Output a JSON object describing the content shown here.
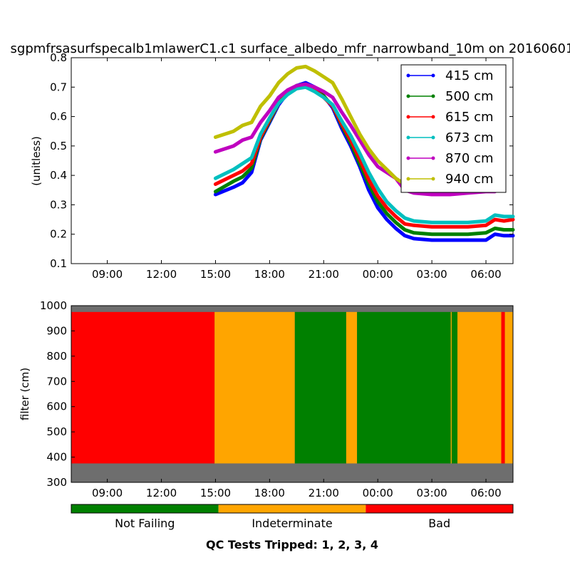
{
  "title": "sgpmfrsasurfspecalb1mlawerC1.c1 surface_albedo_mfr_narrowband_10m on 20160601",
  "colors": {
    "blue": "#0000ff",
    "green": "#008000",
    "red": "#ff0000",
    "cyan": "#00bfbf",
    "magenta": "#bf00bf",
    "olive": "#bfbf00",
    "orange": "#ffa500",
    "gray": "#6e6e6e"
  },
  "chart_data": [
    {
      "type": "line",
      "ylabel": "(unitless)",
      "xlabel": "",
      "x_unit": "hours since 00:00 on day 1",
      "xlim": [
        7.0,
        31.5
      ],
      "ylim": [
        0.1,
        0.8
      ],
      "yticks": [
        "0.1",
        "0.2",
        "0.3",
        "0.4",
        "0.5",
        "0.6",
        "0.7",
        "0.8"
      ],
      "xticks": [
        "09:00",
        "12:00",
        "15:00",
        "18:00",
        "21:00",
        "00:00",
        "03:00",
        "06:00"
      ],
      "legend_position": "top-right",
      "x": [
        15.0,
        16.0,
        16.5,
        17.0,
        17.5,
        18.0,
        18.5,
        19.0,
        19.5,
        20.0,
        20.5,
        21.0,
        21.5,
        22.0,
        22.5,
        23.0,
        23.5,
        24.0,
        24.5,
        25.0,
        25.5,
        26.0,
        27.0,
        28.0,
        29.0,
        30.0,
        30.5,
        31.0,
        31.5
      ],
      "series": [
        {
          "name": "415 cm",
          "color_key": "blue",
          "values": [
            0.335,
            0.36,
            0.375,
            0.41,
            0.52,
            0.58,
            0.64,
            0.68,
            0.705,
            0.715,
            0.7,
            0.67,
            0.63,
            0.56,
            0.5,
            0.43,
            0.35,
            0.29,
            0.25,
            0.22,
            0.195,
            0.185,
            0.18,
            0.18,
            0.18,
            0.18,
            0.2,
            0.195,
            0.195
          ]
        },
        {
          "name": "500 cm",
          "color_key": "green",
          "values": [
            0.345,
            0.38,
            0.395,
            0.425,
            0.525,
            0.585,
            0.645,
            0.685,
            0.705,
            0.71,
            0.695,
            0.67,
            0.635,
            0.57,
            0.51,
            0.44,
            0.37,
            0.31,
            0.27,
            0.24,
            0.215,
            0.205,
            0.2,
            0.2,
            0.2,
            0.205,
            0.22,
            0.215,
            0.215
          ]
        },
        {
          "name": "615 cm",
          "color_key": "red",
          "values": [
            0.37,
            0.4,
            0.415,
            0.44,
            0.53,
            0.59,
            0.645,
            0.68,
            0.7,
            0.705,
            0.69,
            0.665,
            0.635,
            0.575,
            0.52,
            0.455,
            0.385,
            0.33,
            0.29,
            0.26,
            0.235,
            0.23,
            0.225,
            0.225,
            0.225,
            0.23,
            0.25,
            0.245,
            0.25
          ]
        },
        {
          "name": "673 cm",
          "color_key": "cyan",
          "values": [
            0.39,
            0.42,
            0.44,
            0.46,
            0.54,
            0.595,
            0.645,
            0.675,
            0.695,
            0.7,
            0.685,
            0.665,
            0.64,
            0.585,
            0.535,
            0.475,
            0.41,
            0.355,
            0.31,
            0.28,
            0.255,
            0.245,
            0.24,
            0.24,
            0.24,
            0.245,
            0.265,
            0.26,
            0.26
          ]
        },
        {
          "name": "870 cm",
          "color_key": "magenta",
          "values": [
            0.48,
            0.5,
            0.52,
            0.53,
            0.58,
            0.62,
            0.665,
            0.69,
            0.705,
            0.71,
            0.7,
            0.685,
            0.665,
            0.615,
            0.57,
            0.52,
            0.47,
            0.43,
            0.41,
            0.39,
            0.35,
            0.34,
            0.335,
            0.335,
            0.34,
            0.345,
            0.345,
            null,
            null
          ]
        },
        {
          "name": "940 cm",
          "color_key": "olive",
          "values": [
            0.53,
            0.55,
            0.57,
            0.58,
            0.635,
            0.67,
            0.715,
            0.745,
            0.765,
            0.77,
            0.755,
            0.735,
            0.715,
            0.66,
            0.6,
            0.54,
            0.49,
            0.45,
            0.42,
            0.39,
            0.37,
            0.355,
            0.35,
            0.35,
            0.35,
            0.355,
            null,
            null,
            null
          ]
        }
      ]
    },
    {
      "type": "heatmap",
      "ylabel": "filter (cm)",
      "xlim": [
        7.0,
        31.5
      ],
      "ylim": [
        300,
        1000
      ],
      "filter_range": [
        375,
        975
      ],
      "yticks": [
        "300",
        "400",
        "500",
        "600",
        "700",
        "800",
        "900",
        "1000"
      ],
      "xticks": [
        "09:00",
        "12:00",
        "15:00",
        "18:00",
        "21:00",
        "00:00",
        "03:00",
        "06:00"
      ],
      "segments": [
        {
          "start": 7.0,
          "end": 14.95,
          "state": "red"
        },
        {
          "start": 14.95,
          "end": 19.4,
          "state": "orange"
        },
        {
          "start": 19.4,
          "end": 22.25,
          "state": "green"
        },
        {
          "start": 22.25,
          "end": 22.85,
          "state": "orange"
        },
        {
          "start": 22.85,
          "end": 28.05,
          "state": "green"
        },
        {
          "start": 28.05,
          "end": 28.1,
          "state": "orange"
        },
        {
          "start": 28.1,
          "end": 28.42,
          "state": "green"
        },
        {
          "start": 28.42,
          "end": 30.85,
          "state": "orange"
        },
        {
          "start": 30.85,
          "end": 31.05,
          "state": "red"
        },
        {
          "start": 31.05,
          "end": 32.0,
          "state": "orange"
        },
        {
          "start": 32.0,
          "end": 32.5,
          "state": "red"
        }
      ],
      "legend": [
        {
          "label": "Not Failing",
          "color_key": "green"
        },
        {
          "label": "Indeterminate",
          "color_key": "orange"
        },
        {
          "label": "Bad",
          "color_key": "red"
        }
      ],
      "qc_title": "QC Tests Tripped: 1, 2, 3, 4"
    }
  ]
}
